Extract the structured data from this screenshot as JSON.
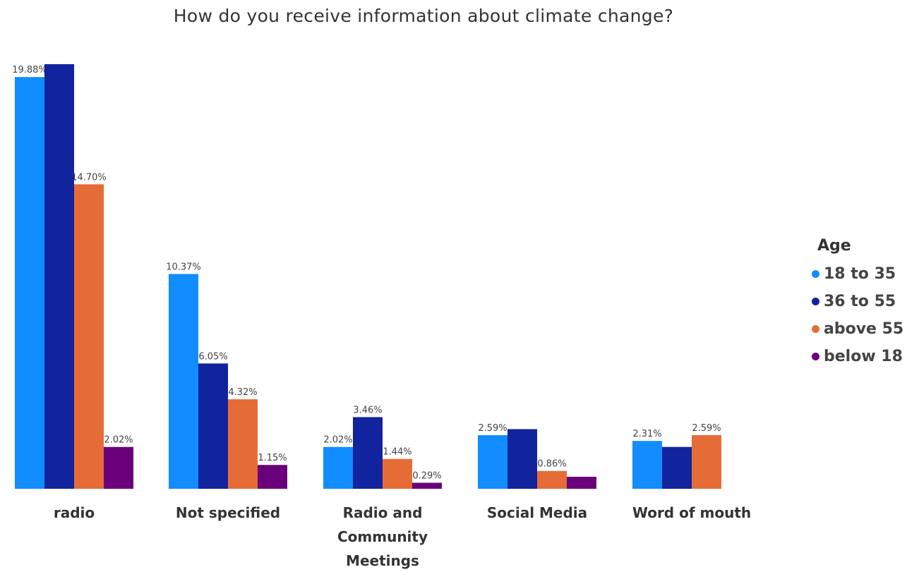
{
  "chart_data": {
    "type": "bar",
    "title": "How do you receive information about climate change?",
    "categories": [
      "radio",
      "Not specified",
      "Radio and Community Meetings",
      "Social Media",
      "Word of mouth"
    ],
    "series": [
      {
        "name": "18 to 35",
        "color": "#118DFF",
        "values": [
          19.88,
          10.37,
          2.02,
          2.59,
          2.31
        ]
      },
      {
        "name": "36 to 55",
        "color": "#12239E",
        "values": [
          20.5,
          6.05,
          3.46,
          2.88,
          2.02
        ]
      },
      {
        "name": "above 55",
        "color": "#E66C37",
        "values": [
          14.7,
          4.32,
          1.44,
          0.86,
          2.59
        ]
      },
      {
        "name": "below 18",
        "color": "#6B007B",
        "values": [
          2.02,
          1.15,
          0.29,
          0.58,
          null
        ]
      }
    ],
    "data_labels": [
      [
        "19.88%",
        "10.37%",
        "2.02%",
        "2.59%",
        "2.31%"
      ],
      [
        null,
        "6.05%",
        "3.46%",
        null,
        null
      ],
      [
        "14.70%",
        "4.32%",
        "1.44%",
        "0.86%",
        "2.59%"
      ],
      [
        "2.02%",
        "1.15%",
        "0.29%",
        null,
        null
      ]
    ],
    "legend_title": "Age",
    "legend_position": "right",
    "ylim": [
      0,
      20.5
    ],
    "grid": false,
    "y_axis_visible": false
  }
}
